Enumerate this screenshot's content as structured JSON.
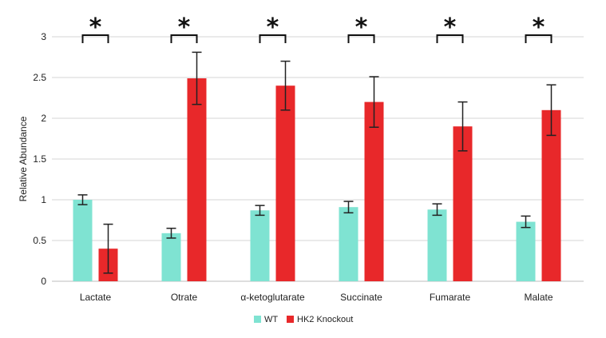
{
  "chart_data": {
    "type": "bar",
    "title": "",
    "xlabel": "",
    "ylabel": "Relative Abundance",
    "ylim": [
      0,
      3
    ],
    "yticks": [
      "0",
      "0.5",
      "1",
      "1.5",
      "2",
      "2.5",
      "3"
    ],
    "grid": true,
    "legend_position": "bottom",
    "categories": [
      "Lactate",
      "Otrate",
      "α-ketoglutarate",
      "Succinate",
      "Fumarate",
      "Malate"
    ],
    "series": [
      {
        "name": "WT",
        "color": "#7fe3d2",
        "values": [
          1.0,
          0.59,
          0.87,
          0.91,
          0.88,
          0.73
        ],
        "errors": [
          0.06,
          0.06,
          0.06,
          0.07,
          0.07,
          0.07
        ]
      },
      {
        "name": "HK2 Knockout",
        "color": "#e8282a",
        "values": [
          0.4,
          2.49,
          2.4,
          2.2,
          1.9,
          2.1
        ],
        "errors": [
          0.3,
          0.32,
          0.3,
          0.31,
          0.3,
          0.31
        ]
      }
    ],
    "significance_marker": "*"
  }
}
